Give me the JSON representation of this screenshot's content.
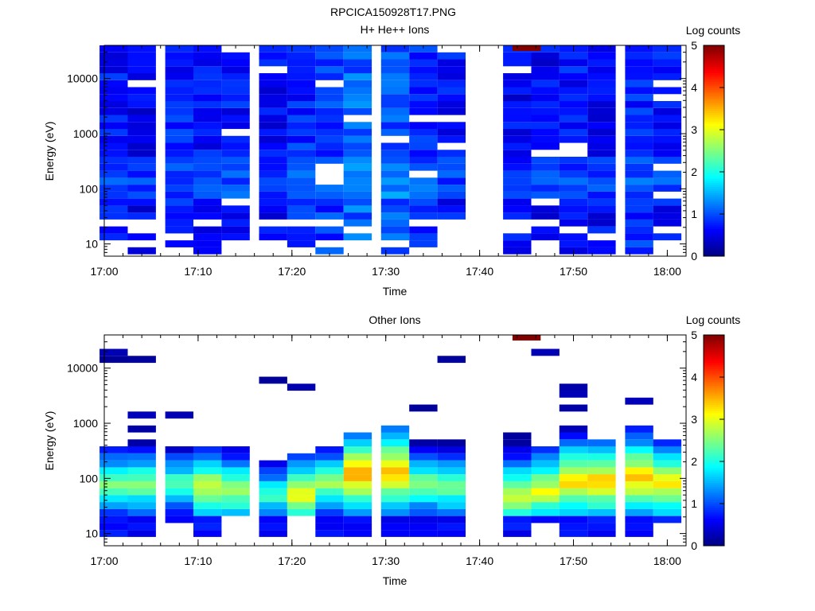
{
  "figure_title": "RPCICA150928T17.PNG",
  "chart_data": [
    {
      "type": "heatmap",
      "title": "H+ He++ Ions",
      "xlabel": "Time",
      "ylabel": "Energy (eV)",
      "x_ticks": [
        "17:00",
        "17:10",
        "17:20",
        "17:30",
        "17:40",
        "17:50",
        "18:00"
      ],
      "y_ticks": [
        "10",
        "100",
        "1000",
        "10000"
      ],
      "y_scale": "log",
      "ylim": [
        6,
        40000
      ],
      "xlim": [
        "17:00",
        "18:02"
      ],
      "colorbar": {
        "label": "Log counts",
        "ticks": [
          "0",
          "1",
          "2",
          "3",
          "4",
          "5"
        ],
        "range": [
          0,
          5
        ],
        "colormap": "jet"
      },
      "data_gap": [
        "17:40",
        "17:43"
      ],
      "time_bins": [
        "17:01",
        "17:04",
        "17:08",
        "17:11",
        "17:14",
        "17:18",
        "17:21",
        "17:24",
        "17:27",
        "17:31",
        "17:34",
        "17:37",
        "17:44",
        "17:47",
        "17:50",
        "17:53",
        "17:57",
        "18:00"
      ],
      "approx_level_by_bin": [
        0.7,
        0.6,
        0.75,
        0.7,
        0.7,
        0.65,
        0.8,
        0.9,
        1.1,
        1.0,
        0.8,
        0.7,
        0.6,
        0.6,
        0.7,
        0.65,
        0.8,
        0.7
      ],
      "peak_log_counts": 5,
      "peak_at": {
        "time": "17:45",
        "energy_ev": 35000
      }
    },
    {
      "type": "heatmap",
      "title": "Other Ions",
      "xlabel": "Time",
      "ylabel": "Energy (eV)",
      "x_ticks": [
        "17:00",
        "17:10",
        "17:20",
        "17:30",
        "17:40",
        "17:50",
        "18:00"
      ],
      "y_ticks": [
        "10",
        "100",
        "1000",
        "10000"
      ],
      "y_scale": "log",
      "ylim": [
        6,
        40000
      ],
      "xlim": [
        "17:00",
        "18:02"
      ],
      "colorbar": {
        "label": "Log counts",
        "ticks": [
          "0",
          "1",
          "2",
          "3",
          "4",
          "5"
        ],
        "range": [
          0,
          5
        ],
        "colormap": "jet"
      },
      "data_gap": [
        "17:40",
        "17:43"
      ],
      "time_bins": [
        "17:01",
        "17:04",
        "17:08",
        "17:11",
        "17:14",
        "17:18",
        "17:21",
        "17:24",
        "17:27",
        "17:31",
        "17:34",
        "17:37",
        "17:44",
        "17:47",
        "17:50",
        "17:53",
        "17:57",
        "18:00"
      ],
      "peak_log_counts_by_bin": [
        2.6,
        2.7,
        2.4,
        3.0,
        2.8,
        2.3,
        3.1,
        2.7,
        3.6,
        3.6,
        2.6,
        2.6,
        3.0,
        3.1,
        3.4,
        3.4,
        3.5,
        3.3
      ],
      "peak_energy_ev_by_bin": [
        80,
        80,
        80,
        70,
        60,
        50,
        50,
        80,
        120,
        130,
        80,
        70,
        50,
        60,
        90,
        90,
        100,
        80
      ],
      "band_top_ev_by_bin": [
        380,
        550,
        340,
        370,
        400,
        200,
        300,
        420,
        600,
        800,
        520,
        500,
        780,
        400,
        680,
        450,
        900,
        560
      ],
      "band_bottom_ev_by_bin": [
        10,
        10,
        17,
        10,
        22,
        10,
        22,
        10,
        10,
        10,
        10,
        10,
        10,
        14,
        10,
        10,
        10,
        14
      ],
      "peak_log_counts": 5,
      "peak_at": {
        "time": "17:45",
        "energy_ev": 35000
      }
    }
  ]
}
